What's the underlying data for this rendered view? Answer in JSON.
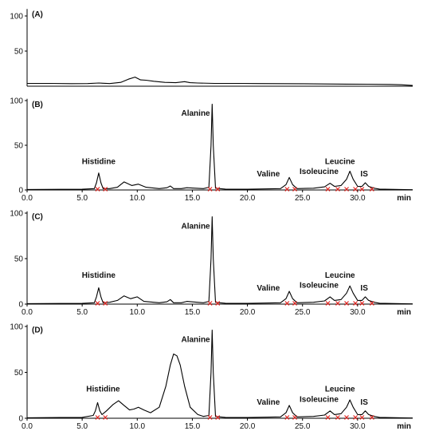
{
  "chart_data": [
    {
      "type": "line",
      "panel_label": "(A)",
      "xlim": [
        0,
        35
      ],
      "ylim": [
        0,
        110
      ],
      "x_ticks": [],
      "x_unit": "",
      "y_ticks": [
        100,
        50
      ],
      "baseline_marks": [],
      "peak_labels": [],
      "series": [
        {
          "x": [
            0,
            2,
            4,
            5.5,
            6.5,
            7.5,
            8.5,
            9.2,
            9.8,
            10.3,
            10.8,
            11.5,
            12.5,
            13.5,
            14.3,
            14.8,
            15.5,
            17,
            19,
            21,
            23,
            25,
            27,
            29,
            31,
            33,
            34,
            35
          ],
          "y": [
            4,
            4,
            3.6,
            3.8,
            4.5,
            3.8,
            5.5,
            10,
            13,
            9,
            8.5,
            7,
            5.5,
            5,
            6.5,
            5,
            4.5,
            4,
            4,
            3.8,
            3.6,
            3.5,
            3.2,
            3,
            2.8,
            2.5,
            2,
            1
          ]
        }
      ]
    },
    {
      "type": "line",
      "panel_label": "(B)",
      "xlim": [
        0,
        35
      ],
      "ylim": [
        0,
        102
      ],
      "x_ticks": [
        "0.0",
        "5.0",
        "10.0",
        "15.0",
        "20.0",
        "25.0",
        "30.0"
      ],
      "x_unit": "min",
      "y_ticks": [
        100,
        50,
        0
      ],
      "baseline_marks": [
        6.4,
        7.1,
        16.6,
        17.3,
        23.6,
        24.3,
        27.3,
        28.2,
        29,
        29.8,
        30.4,
        31.3
      ],
      "peak_labels": [
        {
          "text": "Histidine",
          "x": 6.5,
          "y": 29
        },
        {
          "text": "Alanine",
          "x": 15.3,
          "y": 83
        },
        {
          "text": "Valine",
          "x": 21.9,
          "y": 15
        },
        {
          "text": "Isoleucine",
          "x": 26.5,
          "y": 18
        },
        {
          "text": "Leucine",
          "x": 28.4,
          "y": 29
        },
        {
          "text": "IS",
          "x": 30.6,
          "y": 15
        }
      ],
      "series": [
        {
          "x": [
            0,
            3,
            5,
            6.1,
            6.3,
            6.5,
            6.7,
            6.9,
            7.5,
            8.2,
            8.8,
            9.5,
            10.1,
            10.8,
            12,
            12.7,
            13,
            13.3,
            14,
            14.5,
            16,
            16.5,
            16.7,
            16.8,
            16.9,
            17.1,
            17.5,
            18,
            20,
            23,
            23.5,
            23.8,
            24.1,
            24.5,
            26,
            27,
            27.5,
            27.9,
            28.5,
            29,
            29.3,
            29.6,
            30,
            30.4,
            30.7,
            31,
            31.5,
            32,
            35
          ],
          "y": [
            0.5,
            0.7,
            0.8,
            1.5,
            8,
            19,
            8,
            1.5,
            1.5,
            3,
            9,
            5,
            6.5,
            3,
            1.5,
            2.5,
            4.5,
            1.5,
            1.5,
            2.5,
            1.5,
            3,
            50,
            96,
            50,
            2,
            1.5,
            1,
            0.8,
            1.5,
            6,
            14,
            6,
            1.5,
            2,
            3.5,
            7.5,
            4,
            5,
            12,
            21,
            12,
            4,
            4,
            8,
            4,
            2,
            1,
            0.3
          ]
        }
      ]
    },
    {
      "type": "line",
      "panel_label": "(C)",
      "xlim": [
        0,
        35
      ],
      "ylim": [
        0,
        102
      ],
      "x_ticks": [
        "0.0",
        "5.0",
        "10.0",
        "15.0",
        "20.0",
        "25.0",
        "30.0"
      ],
      "x_unit": "min",
      "y_ticks": [
        100,
        50,
        0
      ],
      "baseline_marks": [
        6.4,
        7.1,
        16.6,
        17.3,
        23.6,
        24.3,
        27.3,
        28.2,
        29,
        29.8,
        30.4,
        31.3
      ],
      "peak_labels": [
        {
          "text": "Histidine",
          "x": 6.5,
          "y": 29
        },
        {
          "text": "Alanine",
          "x": 15.3,
          "y": 83
        },
        {
          "text": "Valine",
          "x": 21.9,
          "y": 15
        },
        {
          "text": "Isoleucine",
          "x": 26.5,
          "y": 18
        },
        {
          "text": "Leucine",
          "x": 28.4,
          "y": 29
        },
        {
          "text": "IS",
          "x": 30.6,
          "y": 15
        }
      ],
      "series": [
        {
          "x": [
            0,
            3,
            5,
            6.1,
            6.3,
            6.5,
            6.7,
            6.9,
            7.5,
            8.2,
            8.8,
            9.4,
            10,
            10.6,
            12,
            12.7,
            13,
            13.3,
            14,
            14.5,
            16,
            16.5,
            16.7,
            16.8,
            16.9,
            17.1,
            17.5,
            18,
            20,
            23,
            23.5,
            23.8,
            24.1,
            24.5,
            26,
            27,
            27.5,
            27.9,
            28.5,
            29,
            29.3,
            29.6,
            30,
            30.4,
            30.7,
            31,
            31.5,
            32,
            35
          ],
          "y": [
            0.5,
            0.7,
            0.8,
            1.5,
            8,
            18,
            8,
            1.5,
            2,
            4,
            9,
            6,
            8,
            3,
            1.5,
            2.5,
            5,
            1.5,
            1.5,
            3,
            1.5,
            3,
            50,
            96,
            50,
            2,
            1.5,
            1,
            0.8,
            1.5,
            6,
            14,
            6,
            1.5,
            2,
            3.5,
            8,
            4,
            5,
            12,
            20,
            12,
            4,
            4,
            8,
            4,
            2,
            1,
            0.3
          ]
        }
      ]
    },
    {
      "type": "line",
      "panel_label": "(D)",
      "xlim": [
        0,
        35
      ],
      "ylim": [
        0,
        102
      ],
      "x_ticks": [
        "0.0",
        "5.0",
        "10.0",
        "15.0",
        "20.0",
        "25.0",
        "30.0"
      ],
      "x_unit": "min",
      "y_ticks": [
        100,
        50,
        0
      ],
      "baseline_marks": [
        6.4,
        7.1,
        16.6,
        17.3,
        23.6,
        24.3,
        27.3,
        28.2,
        29,
        29.8,
        30.4,
        31.3
      ],
      "peak_labels": [
        {
          "text": "Histidine",
          "x": 6.9,
          "y": 29
        },
        {
          "text": "Alanine",
          "x": 15.3,
          "y": 83
        },
        {
          "text": "Valine",
          "x": 21.9,
          "y": 15
        },
        {
          "text": "Isoleucine",
          "x": 26.5,
          "y": 18
        },
        {
          "text": "Leucine",
          "x": 28.4,
          "y": 29
        },
        {
          "text": "IS",
          "x": 30.6,
          "y": 15
        }
      ],
      "series": [
        {
          "x": [
            0,
            3,
            5,
            6,
            6.2,
            6.4,
            6.6,
            6.8,
            7.2,
            7.8,
            8.3,
            8.8,
            9.3,
            9.7,
            10.1,
            10.6,
            11.2,
            12,
            12.6,
            13,
            13.3,
            13.6,
            13.9,
            14.3,
            14.8,
            15.5,
            16,
            16.5,
            16.7,
            16.8,
            16.9,
            17.1,
            17.5,
            18,
            20,
            23,
            23.5,
            23.8,
            24.1,
            24.5,
            26,
            27,
            27.5,
            27.9,
            28.5,
            29,
            29.3,
            29.6,
            30,
            30.4,
            30.7,
            31,
            31.5,
            32,
            35
          ],
          "y": [
            0.5,
            0.8,
            1,
            3,
            8,
            17,
            8,
            4,
            8,
            15,
            19,
            14,
            9,
            10,
            12,
            9,
            6,
            12,
            35,
            58,
            70,
            68,
            58,
            35,
            12,
            4,
            2,
            3,
            50,
            96,
            50,
            2,
            1.5,
            1,
            0.8,
            1.5,
            6,
            14,
            6,
            1.5,
            2,
            3.5,
            8,
            4,
            5,
            12,
            20,
            12,
            4,
            4,
            8,
            4,
            2,
            1,
            0.3
          ]
        }
      ]
    }
  ]
}
